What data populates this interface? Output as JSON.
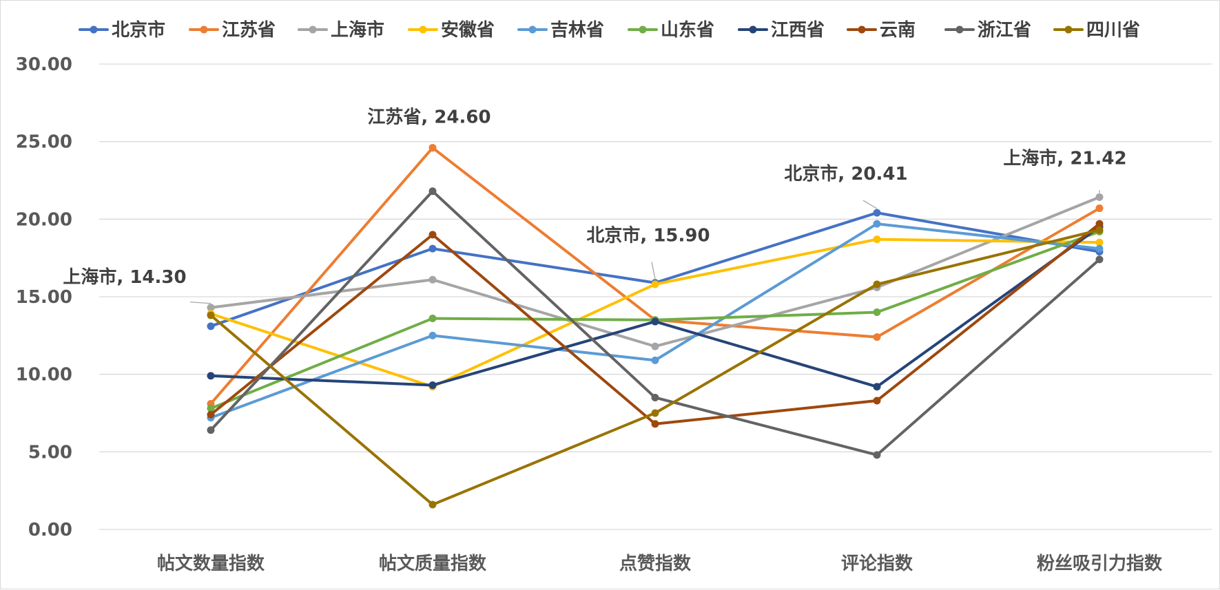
{
  "chart_data": {
    "type": "line",
    "title": "",
    "xlabel": "",
    "ylabel": "",
    "ylim": [
      0,
      30
    ],
    "y_ticks": [
      0,
      5,
      10,
      15,
      20,
      25,
      30
    ],
    "y_tick_format": "2-decimals",
    "grid": "horizontal",
    "legend_position": "top",
    "categories": [
      "帖文数量指数",
      "帖文质量指数",
      "点赞指数",
      "评论指数",
      "粉丝吸引力指数"
    ],
    "series": [
      {
        "name": "北京市",
        "color": "#4472C4",
        "values": [
          13.1,
          18.1,
          15.9,
          20.41,
          17.9
        ]
      },
      {
        "name": "江苏省",
        "color": "#ED7D31",
        "values": [
          8.1,
          24.6,
          13.5,
          12.4,
          20.7
        ]
      },
      {
        "name": "上海市",
        "color": "#A5A5A5",
        "values": [
          14.3,
          16.1,
          11.8,
          15.6,
          21.42
        ]
      },
      {
        "name": "安徽省",
        "color": "#FFC000",
        "values": [
          13.9,
          9.2,
          15.8,
          18.7,
          18.5
        ]
      },
      {
        "name": "吉林省",
        "color": "#5B9BD5",
        "values": [
          7.2,
          12.5,
          10.9,
          19.7,
          18.1
        ]
      },
      {
        "name": "山东省",
        "color": "#70AD47",
        "values": [
          7.8,
          13.6,
          13.5,
          14.0,
          19.2
        ]
      },
      {
        "name": "江西省",
        "color": "#264478",
        "values": [
          9.9,
          9.3,
          13.4,
          9.2,
          19.5
        ]
      },
      {
        "name": "云南",
        "color": "#9E480E",
        "values": [
          7.4,
          19.0,
          6.8,
          8.3,
          19.7
        ]
      },
      {
        "name": "浙江省",
        "color": "#636363",
        "values": [
          6.4,
          21.8,
          8.5,
          4.8,
          17.4
        ]
      },
      {
        "name": "四川省",
        "color": "#997300",
        "values": [
          13.8,
          1.6,
          7.5,
          15.8,
          19.3
        ]
      }
    ],
    "annotations": [
      {
        "series": "上海市",
        "category_index": 0,
        "text": "上海市, 14.30"
      },
      {
        "series": "江苏省",
        "category_index": 1,
        "text": "江苏省, 24.60"
      },
      {
        "series": "北京市",
        "category_index": 2,
        "text": "北京市, 15.90"
      },
      {
        "series": "北京市",
        "category_index": 3,
        "text": "北京市, 20.41"
      },
      {
        "series": "上海市",
        "category_index": 4,
        "text": "上海市, 21.42"
      }
    ]
  }
}
